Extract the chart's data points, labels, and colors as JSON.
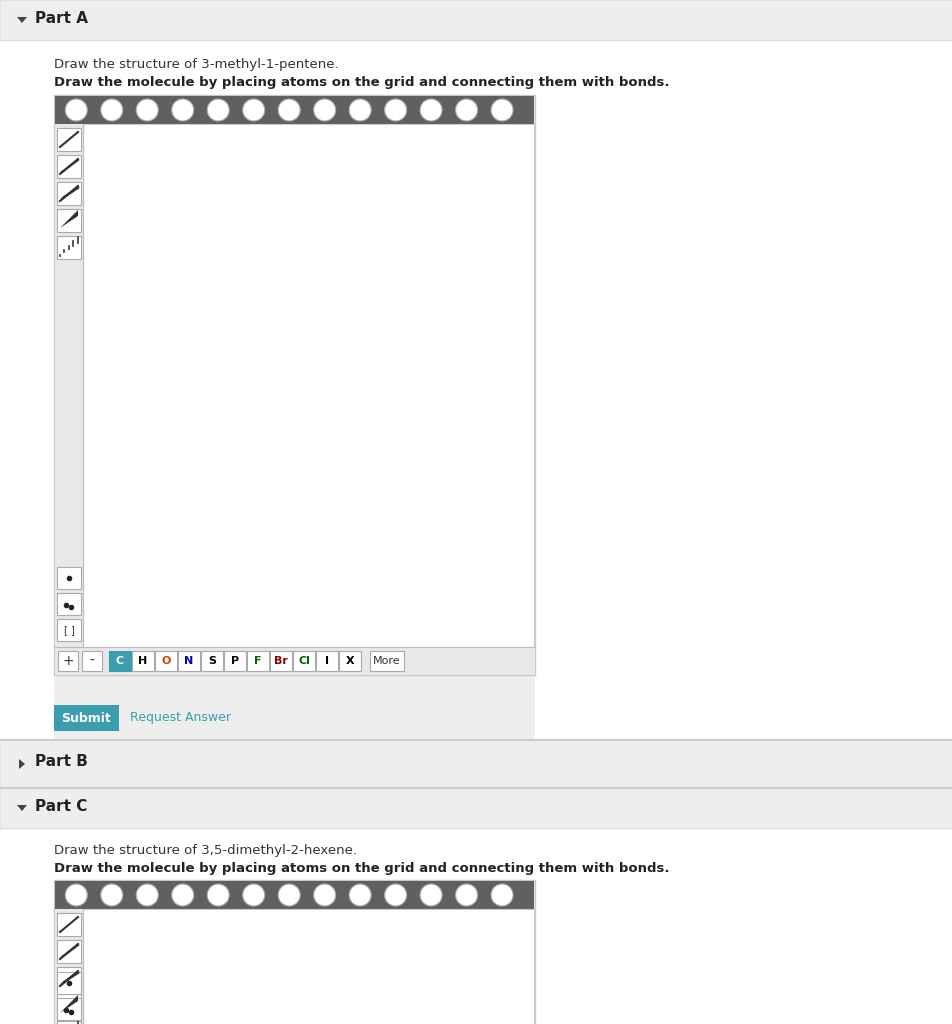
{
  "bg_color": "#f0f0f0",
  "section_header_bg": "#eeeeee",
  "toolbar_bg": "#606060",
  "drawing_area_bg": "#ffffff",
  "sidebar_bg": "#e8e8e8",
  "bottom_bar_bg": "#e8e8e8",
  "content_bg": "#ffffff",
  "part_a_title": "Part A",
  "part_b_title": "Part B",
  "part_c_title": "Part C",
  "part_a_text1": "Draw the structure of 3-methyl-1-pentene.",
  "part_a_text2": "Draw the molecule by placing atoms on the grid and connecting them with bonds.",
  "part_c_text1": "Draw the structure of 3,5-dimethyl-2-hexene.",
  "part_c_text2": "Draw the molecule by placing atoms on the grid and connecting them with bonds.",
  "submit_btn_color": "#3a9eae",
  "submit_text": "Submit",
  "request_answer_text": "Request Answer",
  "atom_buttons": [
    "C",
    "H",
    "O",
    "N",
    "S",
    "P",
    "F",
    "Br",
    "Cl",
    "I",
    "X"
  ],
  "atom_colors": [
    "#ffffff",
    "#000000",
    "#ff6600",
    "#0000cc",
    "#000000",
    "#000000",
    "#009900",
    "#880000",
    "#009900",
    "#000000",
    "#000000"
  ],
  "more_text": "More",
  "border_color": "#cccccc",
  "outer_border": "#c8c8c8",
  "separator_dark": "#cccccc",
  "separator_light": "#ffffff"
}
